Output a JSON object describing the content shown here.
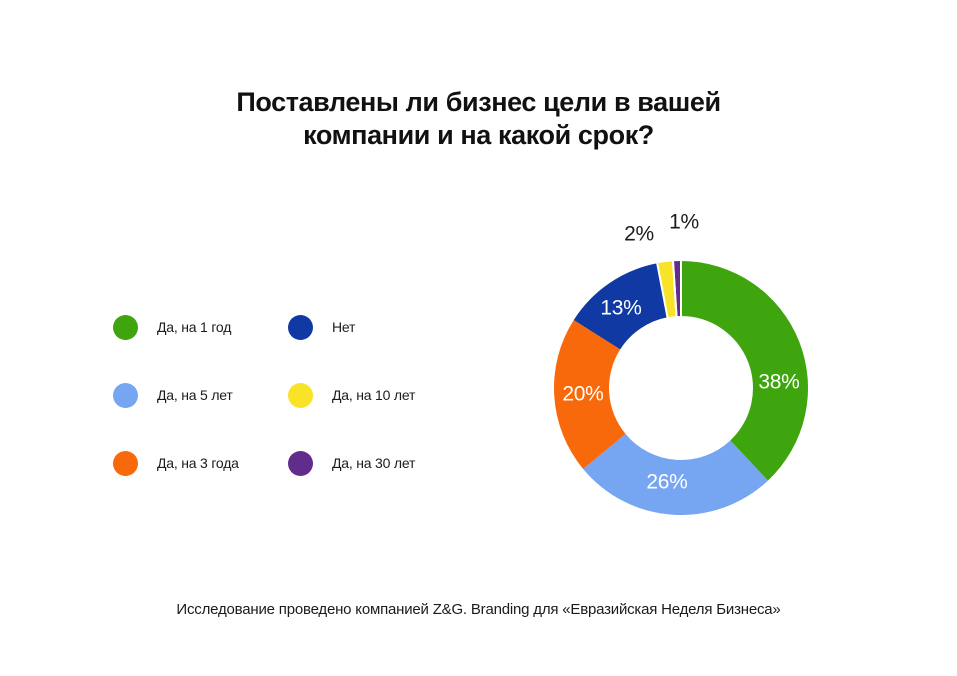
{
  "title": "Поставлены ли бизнес цели в вашей компании и на какой срок?",
  "footer": "Исследование проведено компанией Z&G. Branding для «Евразийская Неделя Бизнеса»",
  "chart_data": {
    "type": "pie",
    "subtype": "donut",
    "title": "Поставлены ли бизнес цели в вашей компании и на какой срок?",
    "start_angle_deg": 0,
    "direction": "clockwise",
    "legend_position": "left",
    "slices": [
      {
        "label": "Да, на 1 год",
        "value": 38,
        "percent_label": "38%",
        "color": "#3EA50F",
        "label_color": "#ffffff"
      },
      {
        "label": "Да, на 5 лет",
        "value": 26,
        "percent_label": "26%",
        "color": "#76A5F1",
        "label_color": "#ffffff"
      },
      {
        "label": "Да, на 3 года",
        "value": 20,
        "percent_label": "20%",
        "color": "#F8690B",
        "label_color": "#ffffff"
      },
      {
        "label": "Нет",
        "value": 13,
        "percent_label": "13%",
        "color": "#1139A3",
        "label_color": "#ffffff"
      },
      {
        "label": "Да, на 10 лет",
        "value": 2,
        "percent_label": "2%",
        "color": "#F8E329",
        "label_color": "#1b1b1b"
      },
      {
        "label": "Да, на 30 лет",
        "value": 1,
        "percent_label": "1%",
        "color": "#622C8C",
        "label_color": "#1b1b1b"
      }
    ]
  }
}
